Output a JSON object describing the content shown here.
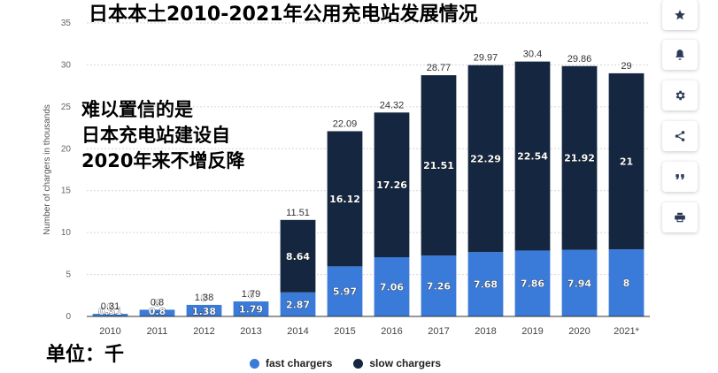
{
  "overlay": {
    "title": "日本本土2010-2021年公用充电站发展情况",
    "note_lines": [
      "难以置信的是",
      "日本充电站建设自",
      "2020年来不增反降"
    ],
    "unit": "单位：千"
  },
  "toolbar": {
    "buttons": [
      {
        "name": "star-icon"
      },
      {
        "name": "bell-icon"
      },
      {
        "name": "gear-icon"
      },
      {
        "name": "share-icon"
      },
      {
        "name": "quote-icon"
      },
      {
        "name": "print-icon"
      }
    ]
  },
  "colors": {
    "fast": "#3a7ad9",
    "slow": "#152740",
    "grid": "#d6d6d6",
    "axis": "#333333"
  },
  "chart_data": {
    "type": "bar",
    "stacked": true,
    "categories": [
      "2010",
      "2011",
      "2012",
      "2013",
      "2014",
      "2015",
      "2016",
      "2017",
      "2018",
      "2019",
      "2020",
      "2021*"
    ],
    "series": [
      {
        "name": "fast chargers",
        "values": [
          0.31,
          0.8,
          1.38,
          1.79,
          2.87,
          5.97,
          7.06,
          7.26,
          7.68,
          7.86,
          7.94,
          8
        ]
      },
      {
        "name": "slow chargers",
        "values": [
          0,
          0,
          0,
          0,
          8.64,
          16.12,
          17.26,
          21.51,
          22.29,
          22.54,
          21.92,
          21
        ]
      }
    ],
    "totals": [
      0.31,
      0.8,
      1.38,
      1.79,
      11.51,
      22.09,
      24.32,
      28.77,
      29.97,
      30.4,
      29.86,
      29
    ],
    "segment_labels": [
      [
        "0.31",
        "0.8",
        "1.38",
        "1.79",
        "2.87",
        "5.97",
        "7.06",
        "7.26",
        "7.68",
        "7.86",
        "7.94",
        "8"
      ],
      [
        "0",
        "0",
        "0",
        "0",
        "8.64",
        "16.12",
        "17.26",
        "21.51",
        "22.29",
        "22.54",
        "21.92",
        "21"
      ]
    ],
    "ylabel": "Number of chargers in thousands",
    "ylim": [
      0,
      35
    ],
    "yticks": [
      0,
      5,
      10,
      15,
      20,
      25,
      30,
      35
    ],
    "grid": true,
    "legend_position": "bottom"
  }
}
